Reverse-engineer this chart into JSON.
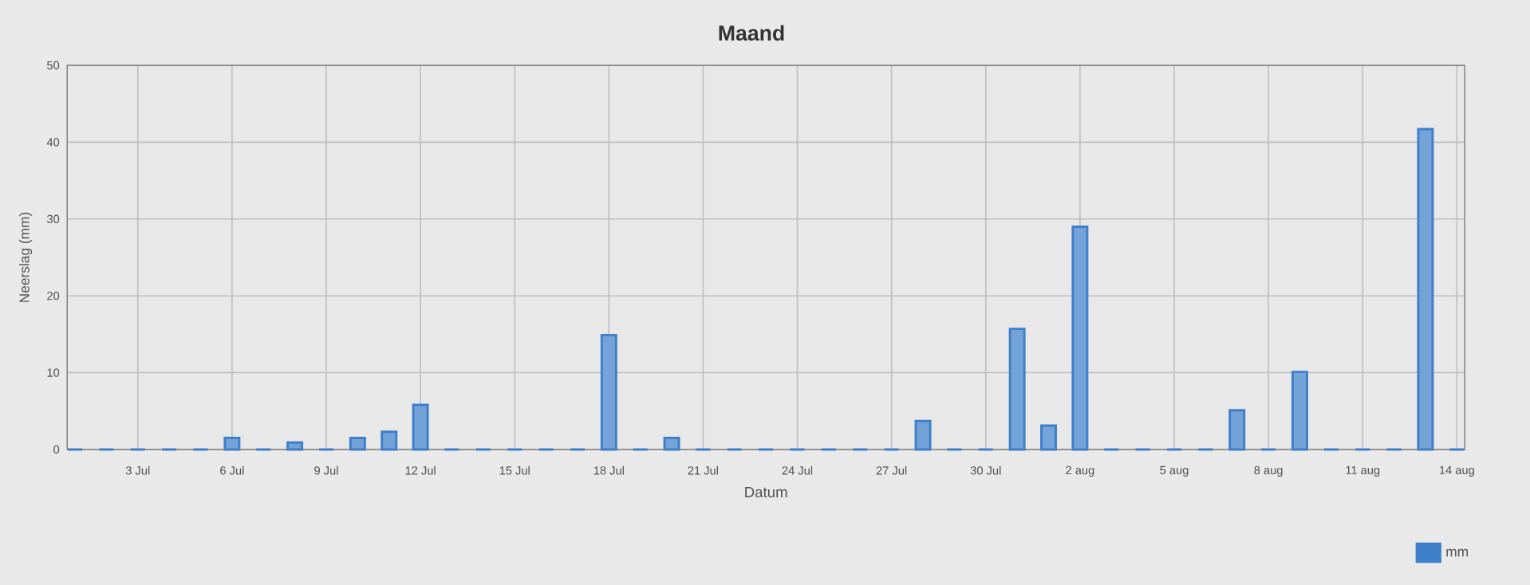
{
  "chart_data": {
    "type": "bar",
    "title": "Maand",
    "xlabel": "Datum",
    "ylabel": "Neerslag (mm)",
    "categories": [
      null,
      null,
      "3 Jul",
      null,
      null,
      "6 Jul",
      null,
      null,
      "9 Jul",
      null,
      null,
      "12 Jul",
      null,
      null,
      "15 Jul",
      null,
      null,
      "18 Jul",
      null,
      null,
      "21 Jul",
      null,
      null,
      "24 Jul",
      null,
      null,
      "27 Jul",
      null,
      null,
      "30 Jul",
      null,
      null,
      "2 aug",
      null,
      null,
      "5 aug",
      null,
      null,
      "8 aug",
      null,
      null,
      "11 aug",
      null,
      null,
      "14 aug"
    ],
    "series": [
      {
        "name": "mm",
        "color": "#3d7fc9",
        "values": [
          0,
          0,
          0,
          0,
          0,
          1.5,
          0,
          0.9,
          0,
          1.5,
          2.3,
          5.8,
          0,
          0,
          0,
          0,
          0,
          14.9,
          0,
          1.5,
          0,
          0,
          0,
          0,
          0,
          0,
          0,
          3.7,
          0,
          0,
          15.7,
          3.1,
          29.0,
          0,
          0,
          0,
          0,
          5.1,
          0,
          10.1,
          0,
          0,
          0,
          41.7,
          0
        ]
      }
    ],
    "ylim": [
      0,
      50
    ],
    "yticks": [
      0,
      10,
      20,
      30,
      40,
      50
    ],
    "grid": true,
    "legend": "bottom right"
  }
}
